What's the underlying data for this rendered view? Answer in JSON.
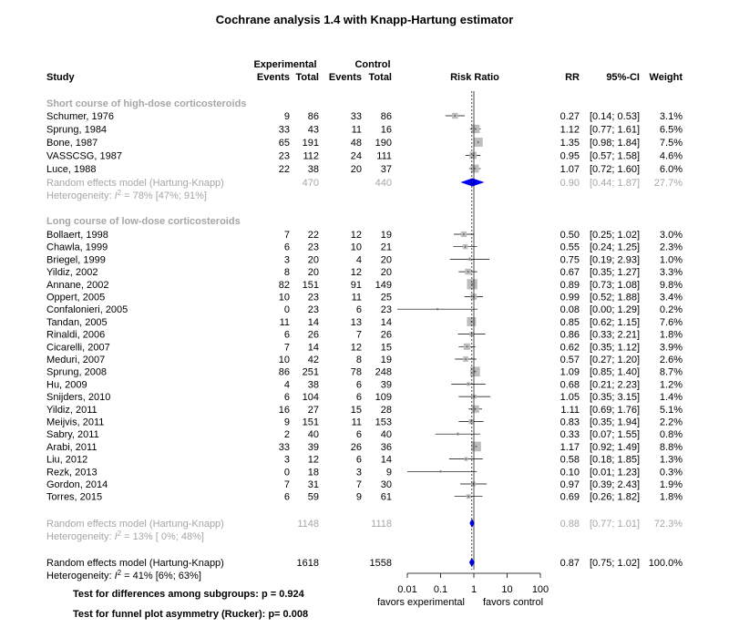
{
  "title": "Cochrane analysis 1.4 with Knapp-Hartung estimator",
  "headers": {
    "experimental": "Experimental",
    "control": "Control",
    "study": "Study",
    "events": "Events",
    "total": "Total",
    "risk_ratio": "Risk Ratio",
    "rr": "RR",
    "ci": "95%-CI",
    "weight": "Weight"
  },
  "subgroups": [
    {
      "name": "Short course of high-dose corticosteroids",
      "studies": [
        {
          "study": "Schumer, 1976",
          "e_ev": "9",
          "e_tot": "86",
          "c_ev": "33",
          "c_tot": "86",
          "rr": 0.27,
          "lo": 0.14,
          "hi": 0.53,
          "rr_txt": "0.27",
          "ci_txt": "[0.14; 0.53]",
          "weight": "3.1%",
          "w": 3.1
        },
        {
          "study": "Sprung, 1984",
          "e_ev": "33",
          "e_tot": "43",
          "c_ev": "11",
          "c_tot": "16",
          "rr": 1.12,
          "lo": 0.77,
          "hi": 1.61,
          "rr_txt": "1.12",
          "ci_txt": "[0.77; 1.61]",
          "weight": "6.5%",
          "w": 6.5
        },
        {
          "study": "Bone, 1987",
          "e_ev": "65",
          "e_tot": "191",
          "c_ev": "48",
          "c_tot": "190",
          "rr": 1.35,
          "lo": 0.98,
          "hi": 1.84,
          "rr_txt": "1.35",
          "ci_txt": "[0.98; 1.84]",
          "weight": "7.5%",
          "w": 7.5
        },
        {
          "study": "VASSCSG, 1987",
          "e_ev": "23",
          "e_tot": "112",
          "c_ev": "24",
          "c_tot": "111",
          "rr": 0.95,
          "lo": 0.57,
          "hi": 1.58,
          "rr_txt": "0.95",
          "ci_txt": "[0.57; 1.58]",
          "weight": "4.6%",
          "w": 4.6
        },
        {
          "study": "Luce, 1988",
          "e_ev": "22",
          "e_tot": "38",
          "c_ev": "20",
          "c_tot": "37",
          "rr": 1.07,
          "lo": 0.72,
          "hi": 1.6,
          "rr_txt": "1.07",
          "ci_txt": "[0.72; 1.60]",
          "weight": "6.0%",
          "w": 6.0
        }
      ],
      "summary": {
        "label": "Random effects model  (Hartung-Knapp)",
        "e_tot": "470",
        "c_tot": "440",
        "rr": 0.9,
        "lo": 0.44,
        "hi": 1.87,
        "rr_txt": "0.90",
        "ci_txt": "[0.44; 1.87]",
        "weight": "27.7%"
      },
      "heterogeneity": {
        "prefix": "Heterogeneity: ",
        "i2": "I",
        "rest": " = 78% [47%; 91%]"
      }
    },
    {
      "name": "Long course of low-dose corticosteroids",
      "studies": [
        {
          "study": "Bollaert, 1998",
          "e_ev": "7",
          "e_tot": "22",
          "c_ev": "12",
          "c_tot": "19",
          "rr": 0.5,
          "lo": 0.25,
          "hi": 1.02,
          "rr_txt": "0.50",
          "ci_txt": "[0.25; 1.02]",
          "weight": "3.0%",
          "w": 3.0
        },
        {
          "study": "Chawla, 1999",
          "e_ev": "6",
          "e_tot": "23",
          "c_ev": "10",
          "c_tot": "21",
          "rr": 0.55,
          "lo": 0.24,
          "hi": 1.25,
          "rr_txt": "0.55",
          "ci_txt": "[0.24; 1.25]",
          "weight": "2.3%",
          "w": 2.3
        },
        {
          "study": "Briegel, 1999",
          "e_ev": "3",
          "e_tot": "20",
          "c_ev": "4",
          "c_tot": "20",
          "rr": 0.75,
          "lo": 0.19,
          "hi": 2.93,
          "rr_txt": "0.75",
          "ci_txt": "[0.19; 2.93]",
          "weight": "1.0%",
          "w": 1.0
        },
        {
          "study": "Yildiz, 2002",
          "e_ev": "8",
          "e_tot": "20",
          "c_ev": "12",
          "c_tot": "20",
          "rr": 0.67,
          "lo": 0.35,
          "hi": 1.27,
          "rr_txt": "0.67",
          "ci_txt": "[0.35; 1.27]",
          "weight": "3.3%",
          "w": 3.3
        },
        {
          "study": "Annane, 2002",
          "e_ev": "82",
          "e_tot": "151",
          "c_ev": "91",
          "c_tot": "149",
          "rr": 0.89,
          "lo": 0.73,
          "hi": 1.08,
          "rr_txt": "0.89",
          "ci_txt": "[0.73; 1.08]",
          "weight": "9.8%",
          "w": 9.8
        },
        {
          "study": "Oppert, 2005",
          "e_ev": "10",
          "e_tot": "23",
          "c_ev": "11",
          "c_tot": "25",
          "rr": 0.99,
          "lo": 0.52,
          "hi": 1.88,
          "rr_txt": "0.99",
          "ci_txt": "[0.52; 1.88]",
          "weight": "3.4%",
          "w": 3.4
        },
        {
          "study": "Confalonieri, 2005",
          "e_ev": "0",
          "e_tot": "23",
          "c_ev": "6",
          "c_tot": "23",
          "rr": 0.08,
          "lo": 0.0,
          "hi": 1.29,
          "rr_txt": "0.08",
          "ci_txt": "[0.00; 1.29]",
          "weight": "0.2%",
          "w": 0.2
        },
        {
          "study": "Tandan, 2005",
          "e_ev": "11",
          "e_tot": "14",
          "c_ev": "13",
          "c_tot": "14",
          "rr": 0.85,
          "lo": 0.62,
          "hi": 1.15,
          "rr_txt": "0.85",
          "ci_txt": "[0.62; 1.15]",
          "weight": "7.6%",
          "w": 7.6
        },
        {
          "study": "Rinaldi, 2006",
          "e_ev": "6",
          "e_tot": "26",
          "c_ev": "7",
          "c_tot": "26",
          "rr": 0.86,
          "lo": 0.33,
          "hi": 2.21,
          "rr_txt": "0.86",
          "ci_txt": "[0.33; 2.21]",
          "weight": "1.8%",
          "w": 1.8
        },
        {
          "study": "Cicarelli, 2007",
          "e_ev": "7",
          "e_tot": "14",
          "c_ev": "12",
          "c_tot": "15",
          "rr": 0.62,
          "lo": 0.35,
          "hi": 1.12,
          "rr_txt": "0.62",
          "ci_txt": "[0.35; 1.12]",
          "weight": "3.9%",
          "w": 3.9
        },
        {
          "study": "Meduri, 2007",
          "e_ev": "10",
          "e_tot": "42",
          "c_ev": "8",
          "c_tot": "19",
          "rr": 0.57,
          "lo": 0.27,
          "hi": 1.2,
          "rr_txt": "0.57",
          "ci_txt": "[0.27; 1.20]",
          "weight": "2.6%",
          "w": 2.6
        },
        {
          "study": "Sprung, 2008",
          "e_ev": "86",
          "e_tot": "251",
          "c_ev": "78",
          "c_tot": "248",
          "rr": 1.09,
          "lo": 0.85,
          "hi": 1.4,
          "rr_txt": "1.09",
          "ci_txt": "[0.85; 1.40]",
          "weight": "8.7%",
          "w": 8.7
        },
        {
          "study": "Hu, 2009",
          "e_ev": "4",
          "e_tot": "38",
          "c_ev": "6",
          "c_tot": "39",
          "rr": 0.68,
          "lo": 0.21,
          "hi": 2.23,
          "rr_txt": "0.68",
          "ci_txt": "[0.21; 2.23]",
          "weight": "1.2%",
          "w": 1.2
        },
        {
          "study": "Snijders, 2010",
          "e_ev": "6",
          "e_tot": "104",
          "c_ev": "6",
          "c_tot": "109",
          "rr": 1.05,
          "lo": 0.35,
          "hi": 3.15,
          "rr_txt": "1.05",
          "ci_txt": "[0.35; 3.15]",
          "weight": "1.4%",
          "w": 1.4
        },
        {
          "study": "Yildiz, 2011",
          "e_ev": "16",
          "e_tot": "27",
          "c_ev": "15",
          "c_tot": "28",
          "rr": 1.11,
          "lo": 0.69,
          "hi": 1.76,
          "rr_txt": "1.11",
          "ci_txt": "[0.69; 1.76]",
          "weight": "5.1%",
          "w": 5.1
        },
        {
          "study": "Meijvis, 2011",
          "e_ev": "9",
          "e_tot": "151",
          "c_ev": "11",
          "c_tot": "153",
          "rr": 0.83,
          "lo": 0.35,
          "hi": 1.94,
          "rr_txt": "0.83",
          "ci_txt": "[0.35; 1.94]",
          "weight": "2.2%",
          "w": 2.2
        },
        {
          "study": "Sabry, 2011",
          "e_ev": "2",
          "e_tot": "40",
          "c_ev": "6",
          "c_tot": "40",
          "rr": 0.33,
          "lo": 0.07,
          "hi": 1.55,
          "rr_txt": "0.33",
          "ci_txt": "[0.07; 1.55]",
          "weight": "0.8%",
          "w": 0.8
        },
        {
          "study": "Arabi, 2011",
          "e_ev": "33",
          "e_tot": "39",
          "c_ev": "26",
          "c_tot": "36",
          "rr": 1.17,
          "lo": 0.92,
          "hi": 1.49,
          "rr_txt": "1.17",
          "ci_txt": "[0.92; 1.49]",
          "weight": "8.8%",
          "w": 8.8
        },
        {
          "study": "Liu, 2012",
          "e_ev": "3",
          "e_tot": "12",
          "c_ev": "6",
          "c_tot": "14",
          "rr": 0.58,
          "lo": 0.18,
          "hi": 1.85,
          "rr_txt": "0.58",
          "ci_txt": "[0.18; 1.85]",
          "weight": "1.3%",
          "w": 1.3
        },
        {
          "study": "Rezk, 2013",
          "e_ev": "0",
          "e_tot": "18",
          "c_ev": "3",
          "c_tot": "9",
          "rr": 0.1,
          "lo": 0.01,
          "hi": 1.23,
          "rr_txt": "0.10",
          "ci_txt": "[0.01; 1.23]",
          "weight": "0.3%",
          "w": 0.3
        },
        {
          "study": "Gordon, 2014",
          "e_ev": "7",
          "e_tot": "31",
          "c_ev": "7",
          "c_tot": "30",
          "rr": 0.97,
          "lo": 0.39,
          "hi": 2.43,
          "rr_txt": "0.97",
          "ci_txt": "[0.39; 2.43]",
          "weight": "1.9%",
          "w": 1.9
        },
        {
          "study": "Torres, 2015",
          "e_ev": "6",
          "e_tot": "59",
          "c_ev": "9",
          "c_tot": "61",
          "rr": 0.69,
          "lo": 0.26,
          "hi": 1.82,
          "rr_txt": "0.69",
          "ci_txt": "[0.26; 1.82]",
          "weight": "1.8%",
          "w": 1.8
        }
      ],
      "summary": {
        "label": "Random effects model  (Hartung-Knapp)",
        "e_tot": "1148",
        "c_tot": "1118",
        "rr": 0.88,
        "lo": 0.77,
        "hi": 1.01,
        "rr_txt": "0.88",
        "ci_txt": "[0.77; 1.01]",
        "weight": "72.3%"
      },
      "heterogeneity": {
        "prefix": "Heterogeneity: ",
        "i2": "I",
        "rest": " = 13% [ 0%; 48%]"
      }
    }
  ],
  "overall": {
    "summary": {
      "label": "Random effects model  (Hartung-Knapp)",
      "e_tot": "1618",
      "c_tot": "1558",
      "rr": 0.87,
      "lo": 0.75,
      "hi": 1.02,
      "rr_txt": "0.87",
      "ci_txt": "[0.75; 1.02]",
      "weight": "100.0%"
    },
    "heterogeneity": {
      "prefix": "Heterogeneity: ",
      "i2": "I",
      "rest": " = 41% [6%; 63%]"
    }
  },
  "tests": {
    "subgroups": "Test for differences among subgroups: p = 0.924",
    "funnel": "Test for funnel plot asymmetry (Rucker): p= 0.008"
  },
  "axis": {
    "ticks": [
      0.01,
      0.1,
      1,
      10,
      100
    ],
    "tick_labels": [
      "0.01",
      "0.1",
      "1",
      "10",
      "100"
    ],
    "scale": "log",
    "left_label": "favors experimental",
    "right_label": "favors control"
  },
  "colors": {
    "grey": "#a6a6a6",
    "diamond_overall": "#0000ff",
    "square": "#bdbdbd"
  },
  "chart_data": {
    "type": "forest",
    "title": "Cochrane analysis 1.4 with Knapp-Hartung estimator",
    "xlabel": "Risk Ratio",
    "xscale": "log",
    "xlim": [
      0.01,
      100
    ],
    "reference_line": 1,
    "pooled_rr": 0.87,
    "pooled_ci": [
      0.75,
      1.02
    ]
  }
}
